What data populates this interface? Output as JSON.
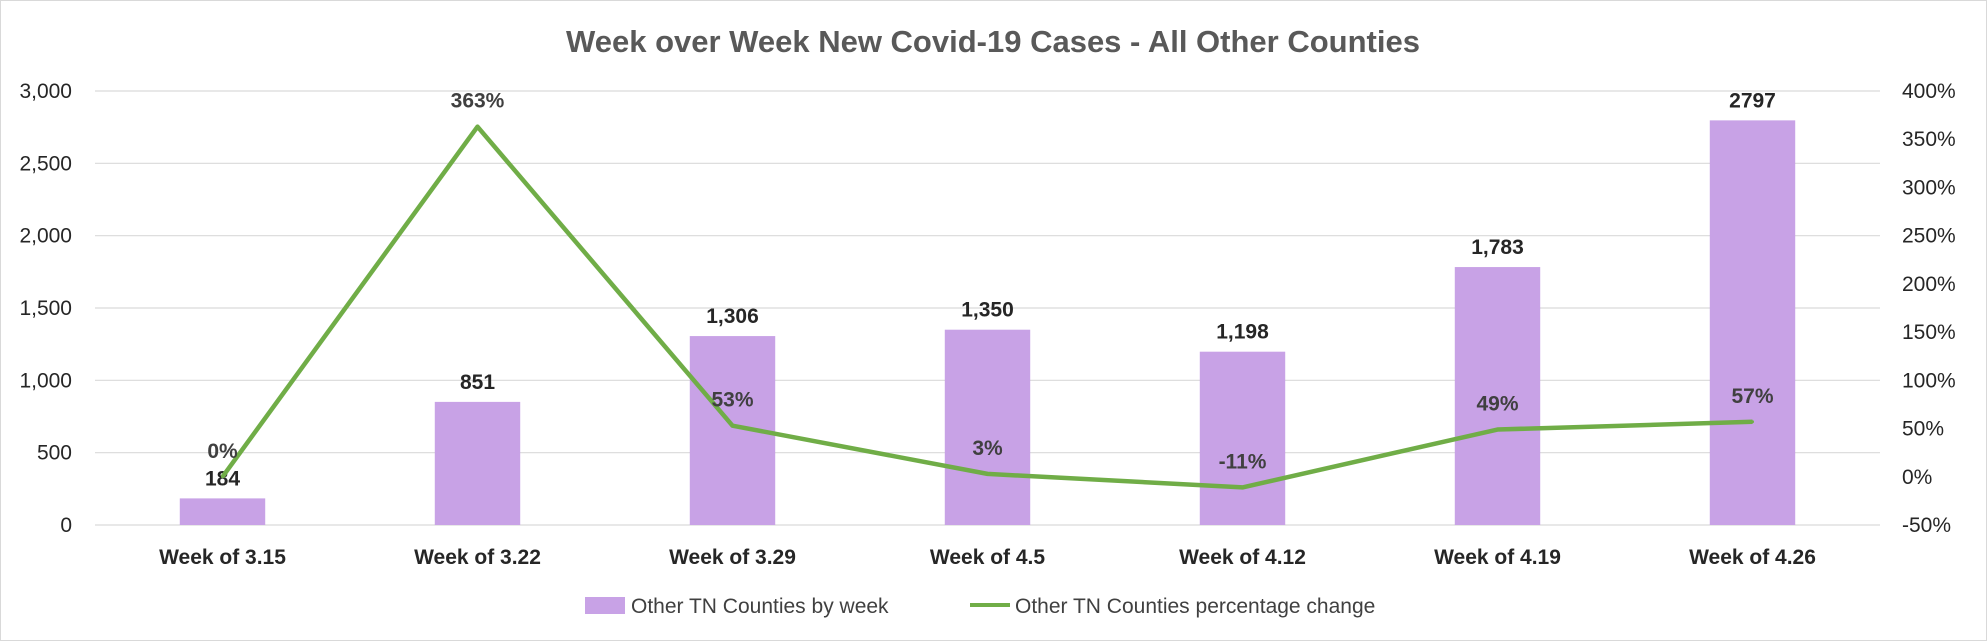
{
  "chart_data": {
    "type": "bar+line",
    "title": "Week over Week New Covid-19 Cases - All Other Counties",
    "categories": [
      "Week of 3.15",
      "Week of 3.22",
      "Week of 3.29",
      "Week of 4.5",
      "Week of 4.12",
      "Week of 4.19",
      "Week of 4.26"
    ],
    "bars": {
      "name": "Other TN Counties by week",
      "values": [
        184,
        851,
        1306,
        1350,
        1198,
        1783,
        2797
      ],
      "labels": [
        "184",
        "851",
        "1,306",
        "1,350",
        "1,198",
        "1,783",
        "2797"
      ],
      "color": "#c8a2e6"
    },
    "line": {
      "name": "Other TN Counties percentage change",
      "values": [
        0,
        363,
        53,
        3,
        -11,
        49,
        57
      ],
      "labels": [
        "0%",
        "363%",
        "53%",
        "3%",
        "-11%",
        "49%",
        "57%"
      ],
      "color": "#70ad47"
    },
    "y_left": {
      "range": [
        0,
        3000
      ],
      "ticks": [
        0,
        500,
        1000,
        1500,
        2000,
        2500,
        3000
      ],
      "tick_labels": [
        "0",
        "500",
        "1,000",
        "1,500",
        "2,000",
        "2,500",
        "3,000"
      ]
    },
    "y_right": {
      "range": [
        -50,
        400
      ],
      "ticks": [
        -50,
        0,
        50,
        100,
        150,
        200,
        250,
        300,
        350,
        400
      ],
      "tick_labels": [
        "-50%",
        "0%",
        "50%",
        "100%",
        "150%",
        "200%",
        "250%",
        "300%",
        "350%",
        "400%"
      ]
    },
    "grid": true,
    "legend_position": "bottom",
    "gridline_color": "#d9d9d9"
  }
}
